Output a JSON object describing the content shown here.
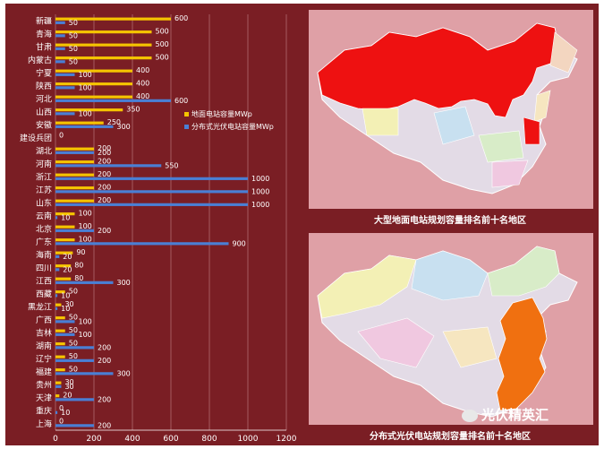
{
  "chart_data": {
    "type": "bar",
    "orientation": "horizontal",
    "categories": [
      "新疆",
      "青海",
      "甘肃",
      "内蒙古",
      "宁夏",
      "陕西",
      "河北",
      "山西",
      "安徽",
      "建设兵团",
      "湖北",
      "河南",
      "浙江",
      "江苏",
      "山东",
      "云南",
      "北京",
      "广东",
      "海南",
      "四川",
      "江西",
      "西藏",
      "黑龙江",
      "广西",
      "吉林",
      "湖南",
      "辽宁",
      "福建",
      "贵州",
      "天津",
      "重庆",
      "上海"
    ],
    "series": [
      {
        "name": "地面电站容量MWp",
        "color": "#f5c400",
        "values": [
          600,
          500,
          500,
          500,
          400,
          400,
          400,
          350,
          250,
          0,
          200,
          200,
          200,
          200,
          200,
          100,
          100,
          100,
          90,
          80,
          80,
          50,
          30,
          50,
          50,
          50,
          50,
          50,
          30,
          20,
          0,
          0
        ]
      },
      {
        "name": "分布式光伏电站容量MWp",
        "color": "#4a7fd4",
        "values": [
          50,
          50,
          50,
          50,
          100,
          100,
          600,
          100,
          300,
          0,
          200,
          550,
          1000,
          1000,
          1000,
          10,
          200,
          900,
          20,
          20,
          300,
          10,
          10,
          100,
          100,
          200,
          200,
          300,
          30,
          200,
          10,
          200
        ]
      }
    ],
    "labels": {
      "series1": [
        "600",
        "500",
        "500",
        "500",
        "400",
        "400",
        "400",
        "350",
        "250",
        "0",
        "200",
        "200",
        "200",
        "200",
        "200",
        "100",
        "100",
        "100",
        "90",
        "80",
        "80",
        "50",
        "30",
        "50",
        "50",
        "50",
        "50",
        "50",
        "30",
        "20",
        "0",
        "0"
      ],
      "series2": [
        "50",
        "50",
        "50",
        "50",
        "100",
        "100",
        "600",
        "100",
        "300",
        "",
        "200",
        "550",
        "1000",
        "1000",
        "1000",
        "10",
        "200",
        "900",
        "20",
        "20",
        "300",
        "10",
        "10",
        "100",
        "100",
        "200",
        "200",
        "300",
        "30",
        "200",
        "10",
        "200"
      ]
    },
    "x_ticks": [
      "0",
      "200",
      "400",
      "600",
      "800",
      "1000",
      "1200"
    ],
    "xlim": [
      0,
      1200
    ],
    "grid": true,
    "legend_position": "right"
  },
  "maps": {
    "map1_caption": "大型地面电站规划容量排名前十名地区",
    "map2_caption": "分布式光伏电站规划容量排名前十名地区",
    "map1_highlight_color": "#ee1111",
    "map2_highlight_color": "#f07010"
  },
  "watermark": {
    "text": "光伏精英汇"
  }
}
